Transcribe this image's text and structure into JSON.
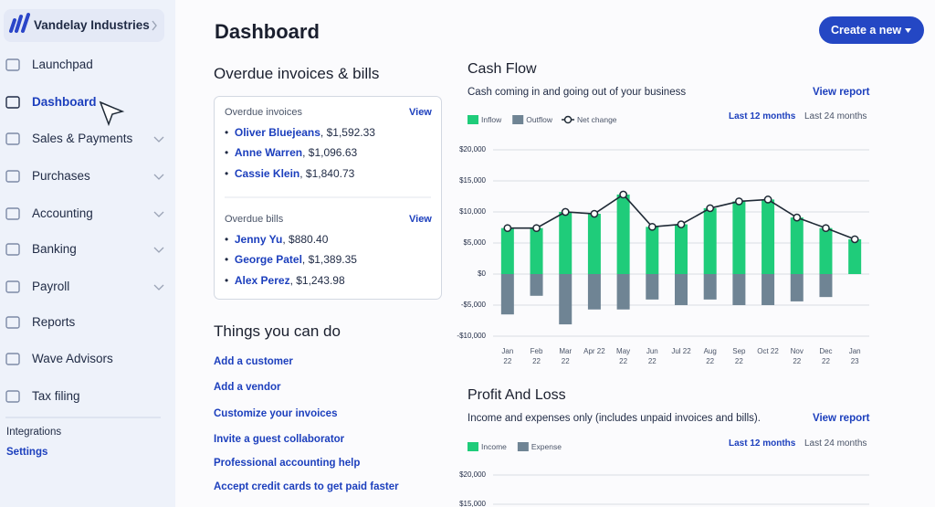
{
  "sidebar": {
    "brand": "Vandelay Industries",
    "items": [
      "Launchpad",
      "Dashboard",
      "Sales & Payments",
      "Purchases",
      "Accounting",
      "Banking",
      "Payroll",
      "Reports",
      "Wave Advisors",
      "Tax filing"
    ],
    "expandable": [
      false,
      false,
      true,
      true,
      true,
      true,
      true,
      false,
      false,
      false
    ],
    "active": 1,
    "footer": [
      "Integrations",
      "Settings"
    ]
  },
  "header": {
    "title": "Dashboard",
    "button": "Create a new"
  },
  "overdue": {
    "title": "Overdue invoices & bills",
    "invoices": {
      "heading": "Overdue invoices",
      "action": "View",
      "items": [
        {
          "name": "Oliver Bluejeans",
          "amount": "$1,592.33"
        },
        {
          "name": "Anne Warren",
          "amount": "$1,096.63"
        },
        {
          "name": "Cassie Klein",
          "amount": "$1,840.73"
        }
      ]
    },
    "bills": {
      "heading": "Overdue bills",
      "action": "View",
      "items": [
        {
          "name": "Jenny Yu",
          "amount": "$880.40"
        },
        {
          "name": "George Patel",
          "amount": "$1,389.35"
        },
        {
          "name": "Alex Perez",
          "amount": "$1,243.98"
        }
      ]
    }
  },
  "things": {
    "title": "Things you can do",
    "links": [
      "Add a customer",
      "Add a vendor",
      "Customize your invoices",
      "Invite a guest collaborator",
      "Professional accounting help",
      "Accept credit cards to get paid faster"
    ]
  },
  "chart_data": [
    {
      "type": "bar",
      "title": "Cash Flow",
      "subtitle": "Cash coming in and going out of your business",
      "link": "View report",
      "ranges": [
        "Last 12 months",
        "Last 24 months"
      ],
      "categories": [
        "Jan 22",
        "Feb 22",
        "Mar 22",
        "Apr 22",
        "May 22",
        "Jun 22",
        "Jul 22",
        "Aug 22",
        "Sep 22",
        "Oct 22",
        "Nov 22",
        "Dec 22",
        "Jan 23"
      ],
      "series": [
        {
          "name": "Inflow",
          "color": "#1fcc7a",
          "values": [
            7400,
            7400,
            10000,
            9700,
            12800,
            7600,
            8000,
            10600,
            11700,
            12000,
            9100,
            7400,
            5600
          ]
        },
        {
          "name": "Outflow",
          "color": "#6f8494",
          "values": [
            -6500,
            -3500,
            -8100,
            -5700,
            -5700,
            -4100,
            -5000,
            -4100,
            -5000,
            -5000,
            -4400,
            -3700,
            0
          ]
        },
        {
          "name": "Net change",
          "color": "#1f2a36",
          "type": "line",
          "values": [
            7400,
            7400,
            10000,
            9700,
            12800,
            7600,
            8000,
            10600,
            11700,
            12000,
            9100,
            7400,
            5600
          ]
        }
      ],
      "ylim": [
        -10000,
        20000
      ],
      "yticks": [
        {
          "value": 20000,
          "label": "$20,000"
        },
        {
          "value": 15000,
          "label": "$15,000"
        },
        {
          "value": 10000,
          "label": "$10,000"
        },
        {
          "value": 5000,
          "label": "$5,000"
        },
        {
          "value": 0,
          "label": "$0"
        },
        {
          "value": -5000,
          "label": "-$5,000"
        },
        {
          "value": -10000,
          "label": "-$10,000"
        }
      ],
      "grid": true
    },
    {
      "type": "bar",
      "title": "Profit And Loss",
      "subtitle": "Income and expenses only (includes unpaid invoices and bills).",
      "link": "View report",
      "ranges": [
        "Last 12 months",
        "Last 24 months"
      ],
      "series": [
        {
          "name": "Income",
          "color": "#1fcc7a"
        },
        {
          "name": "Expense",
          "color": "#6f8494"
        }
      ],
      "ylim": [
        15000,
        20000
      ],
      "yticks": [
        {
          "value": 20000,
          "label": "$20,000"
        },
        {
          "value": 15000,
          "label": "$15,000"
        }
      ],
      "grid": true
    }
  ]
}
